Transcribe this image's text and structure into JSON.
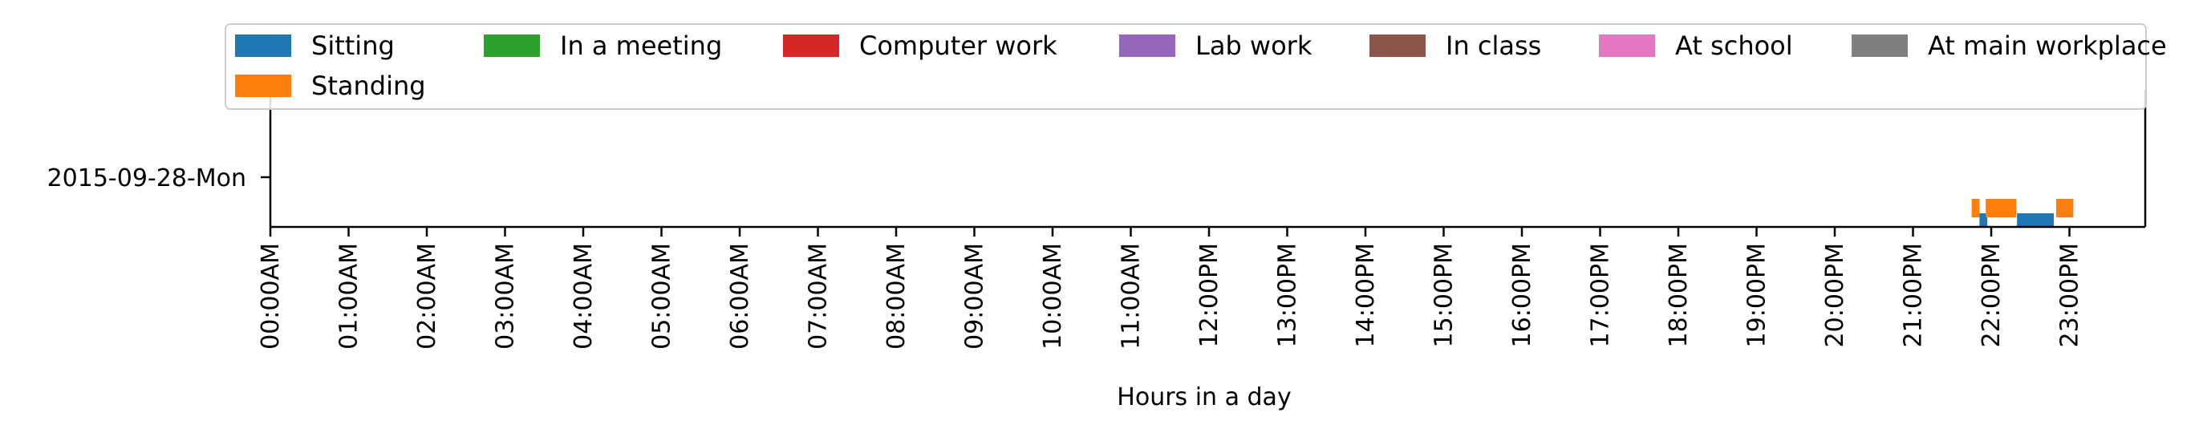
{
  "chart_data": {
    "type": "timeline",
    "title": "",
    "xlabel": "Hours in a day",
    "ylabel": "",
    "xlim_hours": [
      0,
      24
    ],
    "x_ticks": [
      "00:00AM",
      "01:00AM",
      "02:00AM",
      "03:00AM",
      "04:00AM",
      "05:00AM",
      "06:00AM",
      "07:00AM",
      "08:00AM",
      "09:00AM",
      "10:00AM",
      "11:00AM",
      "12:00PM",
      "13:00PM",
      "14:00PM",
      "15:00PM",
      "16:00PM",
      "17:00PM",
      "18:00PM",
      "19:00PM",
      "20:00PM",
      "21:00PM",
      "22:00PM",
      "23:00PM"
    ],
    "y_categories": [
      "2015-09-28-Mon"
    ],
    "legend_position": "top",
    "series": [
      {
        "name": "Sitting",
        "color": "#1f77b4",
        "intervals": [
          [
            21.85,
            21.95
          ],
          [
            22.33,
            22.8
          ]
        ]
      },
      {
        "name": "Standing",
        "color": "#ff7f0e",
        "intervals": [
          [
            21.75,
            21.85
          ],
          [
            21.93,
            22.32
          ],
          [
            22.83,
            23.05
          ]
        ]
      },
      {
        "name": "In a meeting",
        "color": "#2ca02c",
        "intervals": []
      },
      {
        "name": "Computer work",
        "color": "#d62728",
        "intervals": []
      },
      {
        "name": "Lab work",
        "color": "#9467bd",
        "intervals": []
      },
      {
        "name": "In class",
        "color": "#8c564b",
        "intervals": []
      },
      {
        "name": "At school",
        "color": "#e377c2",
        "intervals": []
      },
      {
        "name": "At main workplace",
        "color": "#7f7f7f",
        "intervals": []
      }
    ]
  }
}
